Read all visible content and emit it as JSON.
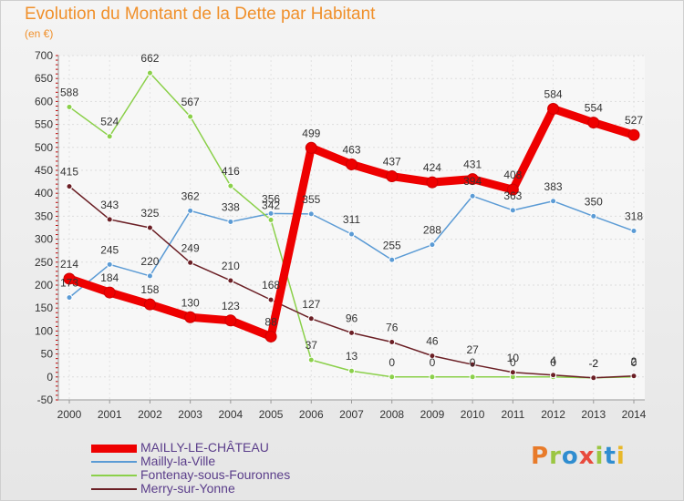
{
  "header": {
    "title": "Evolution du Montant de la Dette par Habitant",
    "subtitle": "(en €)"
  },
  "logo": {
    "text": "Proxiti",
    "colors": [
      "#e87b2a",
      "#9bc642",
      "#2f8dd0",
      "#e84a3c",
      "#9bc642",
      "#2f8dd0",
      "#e8b82a"
    ]
  },
  "chart_data": {
    "type": "line",
    "title": "Evolution du Montant de la Dette par Habitant",
    "subtitle": "(en €)",
    "xlabel": "",
    "ylabel": "",
    "x": [
      "2000",
      "2001",
      "2002",
      "2003",
      "2004",
      "2005",
      "2006",
      "2007",
      "2008",
      "2009",
      "2010",
      "2011",
      "2012",
      "2013",
      "2014"
    ],
    "ylim": [
      -50,
      700
    ],
    "yticks": [
      -50,
      0,
      50,
      100,
      150,
      200,
      250,
      300,
      350,
      400,
      450,
      500,
      550,
      600,
      650,
      700
    ],
    "grid": true,
    "legend_position": "bottom-left",
    "series": [
      {
        "name": "MAILLY-LE-CHÂTEAU",
        "color": "#ee0000",
        "emphasis": true,
        "values": [
          214,
          184,
          158,
          130,
          123,
          88,
          499,
          463,
          437,
          424,
          431,
          408,
          584,
          554,
          527
        ]
      },
      {
        "name": "Mailly-la-Ville",
        "color": "#5b9bd5",
        "emphasis": false,
        "values": [
          173,
          245,
          220,
          362,
          338,
          356,
          355,
          311,
          255,
          288,
          394,
          363,
          383,
          350,
          318
        ]
      },
      {
        "name": "Fontenay-sous-Fouronnes",
        "color": "#8bd04a",
        "emphasis": false,
        "values": [
          588,
          524,
          662,
          567,
          416,
          342,
          37,
          13,
          0,
          0,
          0,
          0,
          0,
          -2,
          0
        ]
      },
      {
        "name": "Merry-sur-Yonne",
        "color": "#6b1f25",
        "emphasis": false,
        "values": [
          415,
          343,
          325,
          249,
          210,
          168,
          127,
          96,
          76,
          46,
          27,
          10,
          4,
          -2,
          2
        ]
      }
    ]
  }
}
